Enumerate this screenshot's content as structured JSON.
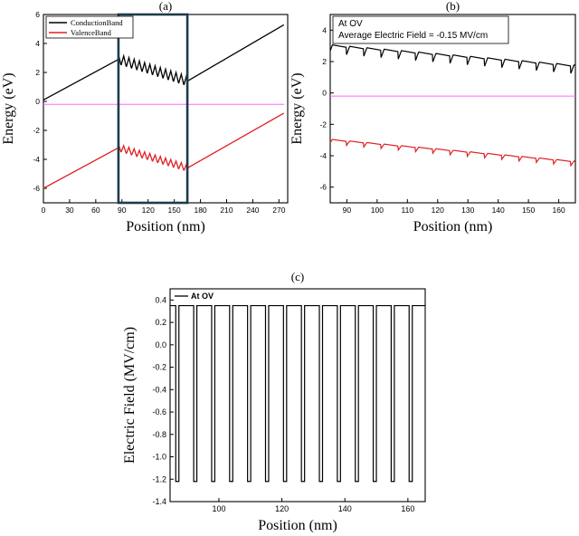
{
  "chart_data": [
    {
      "panel_label": "(a)",
      "type": "line",
      "title": "",
      "xlabel": "Position (nm)",
      "ylabel": "Energy (eV)",
      "xlim": [
        0,
        280
      ],
      "ylim": [
        -7,
        6
      ],
      "xticks": [
        "0",
        "30",
        "60",
        "90",
        "120",
        "150",
        "180",
        "210",
        "240",
        "270"
      ],
      "yticks": [
        "6",
        "4",
        "2",
        "0",
        "-2",
        "-4",
        "-6"
      ],
      "legend": [
        "ConductionBand",
        "ValenceBand"
      ],
      "legend_position": "top-left",
      "zoom_box_x": [
        86,
        165
      ],
      "fermi_level": -0.2,
      "series": [
        {
          "name": "ConductionBand",
          "color": "#000000",
          "x": [
            0,
            86,
            165,
            276
          ],
          "y": [
            0.1,
            2.9,
            1.4,
            5.3
          ],
          "oscillation_region": [
            86,
            165
          ],
          "oscillation_period": 6,
          "oscillation_amplitude": 0.35
        },
        {
          "name": "ValenceBand",
          "color": "#e02020",
          "x": [
            0,
            86,
            165,
            276
          ],
          "y": [
            -6.0,
            -3.2,
            -4.6,
            -0.8
          ],
          "oscillation_region": [
            86,
            165
          ],
          "oscillation_period": 6,
          "oscillation_amplitude": 0.25
        },
        {
          "name": "Fermi",
          "color": "#ff66ff",
          "x": [
            0,
            276
          ],
          "y": [
            -0.2,
            -0.2
          ]
        }
      ]
    },
    {
      "panel_label": "(b)",
      "type": "line",
      "xlabel": "Position (nm)",
      "ylabel": "Energy (eV)",
      "xlim": [
        84.5,
        165.5
      ],
      "ylim": [
        -7,
        5
      ],
      "xticks": [
        "90",
        "100",
        "110",
        "120",
        "130",
        "140",
        "150",
        "160"
      ],
      "yticks": [
        "4",
        "2",
        "0",
        "-2",
        "-4",
        "-6"
      ],
      "annotation": [
        "At OV",
        "Average Electric Field = -0.15 MV/cm"
      ],
      "fermi_level": -0.2,
      "series": [
        {
          "name": "ConductionBand",
          "color": "#000000",
          "start": [
            84.5,
            2.8
          ],
          "end": [
            165.5,
            1.5
          ],
          "period": 5.7,
          "amplitude": 0.55
        },
        {
          "name": "ValenceBand",
          "color": "#e02020",
          "start": [
            84.5,
            -3.1
          ],
          "end": [
            165.5,
            -4.5
          ],
          "period": 5.7,
          "amplitude": 0.3
        },
        {
          "name": "Fermi",
          "color": "#ff66ff",
          "x": [
            84.5,
            165.5
          ],
          "y": [
            -0.2,
            -0.2
          ]
        }
      ]
    },
    {
      "panel_label": "(c)",
      "type": "line",
      "xlabel": "Position (nm)",
      "ylabel": "Electric Field (MV/cm)",
      "xlim": [
        84.5,
        165.5
      ],
      "ylim": [
        -1.4,
        0.5
      ],
      "xticks": [
        "100",
        "120",
        "140",
        "160"
      ],
      "yticks": [
        "0.4",
        "0.2",
        "0.0",
        "-0.2",
        "-0.4",
        "-0.6",
        "-0.8",
        "-1.0",
        "-1.2",
        "-1.4"
      ],
      "legend": [
        "At OV"
      ],
      "legend_position": "top-left",
      "series": [
        {
          "name": "At OV",
          "color": "#000000",
          "high": 0.35,
          "low": -1.22,
          "period": 5.7,
          "low_width": 1.0,
          "first_drop": 86.3
        }
      ]
    }
  ]
}
